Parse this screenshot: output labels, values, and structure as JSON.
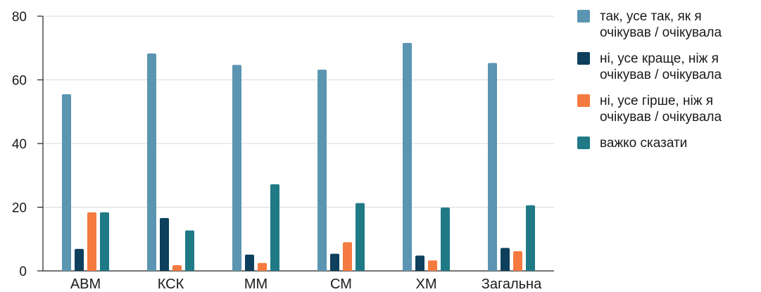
{
  "chart_data": {
    "type": "bar",
    "categories": [
      "АВМ",
      "КСК",
      "ММ",
      "СМ",
      "ХМ",
      "Загальна"
    ],
    "series": [
      {
        "name": "так, усе так, як я\nочікував / очікувала",
        "color": "#5b95b1",
        "values": [
          55.5,
          68.3,
          64.7,
          63.2,
          71.6,
          65.3
        ]
      },
      {
        "name": "ні, усе краще, ніж я\nочікував / очікувала",
        "color": "#0e3f5c",
        "values": [
          6.9,
          16.6,
          5.1,
          5.4,
          4.8,
          7.2
        ]
      },
      {
        "name": "ні, усе гірше, ніж я\nочікував / очікувала",
        "color": "#f47a3f",
        "values": [
          18.4,
          1.8,
          2.5,
          9.0,
          3.3,
          6.2
        ]
      },
      {
        "name": "важко сказати",
        "color": "#1f7a86",
        "values": [
          18.4,
          12.7,
          27.2,
          21.3,
          19.9,
          20.6
        ]
      }
    ],
    "yticks": [
      0,
      20,
      40,
      60,
      80
    ],
    "ylim": [
      0,
      80
    ],
    "grid": true,
    "legend_position": "right"
  }
}
